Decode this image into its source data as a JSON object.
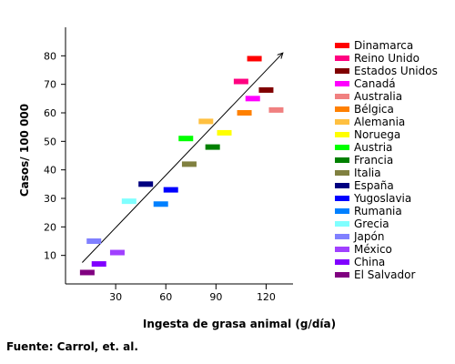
{
  "chart_data": {
    "type": "scatter",
    "xlabel": "Ingesta de grasa animal (g/día)",
    "ylabel": "Casos/ 100 000",
    "xlim": [
      0,
      135
    ],
    "ylim": [
      0,
      90
    ],
    "x_ticks": [
      30,
      60,
      90,
      120
    ],
    "y_ticks": [
      10,
      20,
      30,
      40,
      50,
      60,
      70,
      80
    ],
    "grid": false,
    "legend_position": "right",
    "trendline": {
      "from": [
        10,
        7.5
      ],
      "to": [
        130,
        81
      ]
    },
    "series": [
      {
        "name": "Dinamarca",
        "color": "#ff0000",
        "x": 113,
        "y": 79
      },
      {
        "name": "Reino Unido",
        "color": "#ff0080",
        "x": 105,
        "y": 71
      },
      {
        "name": "Estados Unidos",
        "color": "#800000",
        "x": 120,
        "y": 68
      },
      {
        "name": "Canadá",
        "color": "#ff00ff",
        "x": 112,
        "y": 65
      },
      {
        "name": "Australia",
        "color": "#f08080",
        "x": 126,
        "y": 61
      },
      {
        "name": "Bélgica",
        "color": "#ff8000",
        "x": 107,
        "y": 60
      },
      {
        "name": "Alemania",
        "color": "#ffc040",
        "x": 84,
        "y": 57
      },
      {
        "name": "Noruega",
        "color": "#ffff00",
        "x": 95,
        "y": 53
      },
      {
        "name": "Austria",
        "color": "#00ff00",
        "x": 72,
        "y": 51
      },
      {
        "name": "Francia",
        "color": "#008000",
        "x": 88,
        "y": 48
      },
      {
        "name": "Italia",
        "color": "#808040",
        "x": 74,
        "y": 42
      },
      {
        "name": "España",
        "color": "#000080",
        "x": 48,
        "y": 35
      },
      {
        "name": "Yugoslavia",
        "color": "#0000ff",
        "x": 63,
        "y": 33
      },
      {
        "name": "Rumania",
        "color": "#0080ff",
        "x": 57,
        "y": 28
      },
      {
        "name": "Grecia",
        "color": "#80ffff",
        "x": 38,
        "y": 29
      },
      {
        "name": "Japón",
        "color": "#8080ff",
        "x": 17,
        "y": 15
      },
      {
        "name": "México",
        "color": "#a040ff",
        "x": 31,
        "y": 11
      },
      {
        "name": "China",
        "color": "#8000ff",
        "x": 20,
        "y": 7
      },
      {
        "name": "El Salvador",
        "color": "#800080",
        "x": 13,
        "y": 4
      }
    ]
  },
  "source_note": "Fuente: Carrol, et. al."
}
